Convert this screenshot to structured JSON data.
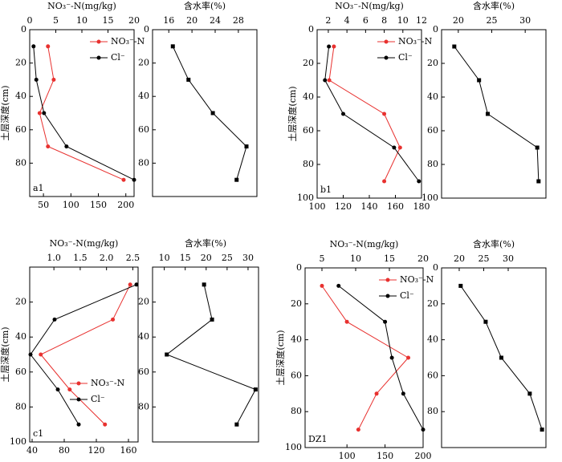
{
  "chart_data": [
    {
      "type": "line",
      "label": "a1",
      "ylabel": "土层深度(cm)",
      "x2label": "NO₃⁻-N(mg/kg)",
      "legend": "upper right",
      "y": [
        10,
        30,
        50,
        70,
        90
      ],
      "ylim": [
        0,
        100
      ],
      "yticks": [
        0,
        20,
        40,
        60,
        80
      ],
      "x2lim": [
        0,
        20
      ],
      "x2ticks": [
        0,
        5,
        10,
        15,
        20
      ],
      "xlim": [
        25,
        215
      ],
      "xticks": [
        50,
        100,
        150,
        200
      ],
      "series": [
        {
          "name": "NO₃⁻-N",
          "color": "#e8312f",
          "axis": "x2",
          "marker": "circle",
          "values": [
            3.5,
            4.6,
            1.9,
            3.5,
            18
          ]
        },
        {
          "name": "Cl⁻",
          "color": "#000000",
          "axis": "x",
          "marker": "circle",
          "values": [
            32,
            37,
            51,
            92,
            215
          ]
        }
      ]
    },
    {
      "type": "line",
      "x2label": "含水率(%)",
      "y": [
        10,
        30,
        50,
        70,
        90
      ],
      "ylim": [
        0,
        100
      ],
      "yticks": [
        0,
        20,
        40,
        60,
        80
      ],
      "x2lim": [
        13.2,
        31.2
      ],
      "x2ticks": [
        16,
        20,
        24,
        28
      ],
      "series": [
        {
          "color": "#000000",
          "axis": "x2",
          "marker": "square",
          "values": [
            16.7,
            19.4,
            23.6,
            29.4,
            27.7
          ]
        }
      ]
    },
    {
      "type": "line",
      "label": "b1",
      "ylabel": "土层深度(cm)",
      "x2label": "NO₃⁻-N(mg/kg)",
      "legend": "upper right",
      "y": [
        10,
        30,
        50,
        70,
        90
      ],
      "ylim": [
        0,
        100
      ],
      "yticks": [
        0,
        20,
        40,
        60,
        80,
        100
      ],
      "x2lim": [
        0.8,
        12
      ],
      "x2ticks": [
        2,
        4,
        6,
        8,
        10,
        12
      ],
      "xlim": [
        100,
        180
      ],
      "xticks": [
        100,
        120,
        140,
        160,
        180
      ],
      "series": [
        {
          "name": "NO₃⁻-N",
          "color": "#e8312f",
          "axis": "x2",
          "marker": "circle",
          "values": [
            2.6,
            2.1,
            8.0,
            9.7,
            8.0
          ]
        },
        {
          "name": "Cl⁻",
          "color": "#000000",
          "axis": "x",
          "marker": "circle",
          "values": [
            109,
            106,
            120,
            159,
            178
          ]
        }
      ]
    },
    {
      "type": "line",
      "x2label": "含水率(%)",
      "y": [
        10,
        30,
        50,
        70,
        90
      ],
      "ylim": [
        0,
        100
      ],
      "yticks": [
        0,
        20,
        40,
        60,
        80,
        100
      ],
      "x2lim": [
        17.5,
        33.1
      ],
      "x2ticks": [
        20,
        25,
        30
      ],
      "series": [
        {
          "color": "#000000",
          "axis": "x2",
          "marker": "square",
          "values": [
            19.4,
            23.1,
            24.4,
            31.8,
            32.0
          ]
        }
      ]
    },
    {
      "type": "line",
      "label": "c1",
      "ylabel": "土层深度(cm)",
      "x2label": "NO₃⁻-N(mg/kg)",
      "legend": "lower center",
      "y": [
        10,
        30,
        50,
        70,
        90
      ],
      "ylim": [
        0,
        100
      ],
      "yticks": [
        20,
        40,
        60,
        80,
        100
      ],
      "x2lim": [
        0.54,
        2.6
      ],
      "x2ticks": [
        {
          "value": 1,
          "label": "1.0"
        },
        1.5,
        {
          "value": 2,
          "label": "2.0"
        },
        2.5
      ],
      "xlim": [
        37,
        172
      ],
      "xticks": [
        40,
        80,
        120,
        160
      ],
      "series": [
        {
          "name": "NO₃⁻-N",
          "color": "#e8312f",
          "axis": "x2",
          "marker": "circle",
          "values": [
            2.45,
            2.12,
            0.75,
            1.3,
            1.97
          ]
        },
        {
          "name": "Cl⁻",
          "color": "#000000",
          "axis": "x",
          "marker": "circle",
          "values": [
            170,
            68,
            38,
            72,
            98
          ]
        }
      ]
    },
    {
      "type": "line",
      "x2label": "含水率(%)",
      "y": [
        10,
        30,
        50,
        70,
        90
      ],
      "ylim": [
        0,
        100
      ],
      "yticks": [
        20,
        40,
        60,
        80
      ],
      "x2lim": [
        7.2,
        32.5
      ],
      "x2ticks": [
        10,
        15,
        20,
        25,
        30
      ],
      "series": [
        {
          "color": "#000000",
          "axis": "x2",
          "marker": "square",
          "values": [
            19.5,
            21.4,
            10.6,
            31.8,
            27.3
          ]
        }
      ]
    },
    {
      "type": "line",
      "label": "DZ1",
      "ylabel": "土层深度(cm)",
      "x2label": "NO₃⁻-N(mg/kg)",
      "legend": "upper right",
      "y": [
        10,
        30,
        50,
        70,
        90
      ],
      "ylim": [
        0,
        100
      ],
      "yticks": [
        0,
        20,
        40,
        60,
        80,
        100
      ],
      "x2lim": [
        2.5,
        20
      ],
      "x2ticks": [
        5,
        10,
        15,
        20
      ],
      "xlim": [
        45,
        200
      ],
      "xticks": [
        100,
        150,
        200
      ],
      "series": [
        {
          "name": "NO₃⁻-N",
          "color": "#e8312f",
          "axis": "x2",
          "marker": "circle",
          "values": [
            5,
            8.7,
            17.8,
            13.1,
            10.4
          ]
        },
        {
          "name": "Cl⁻",
          "color": "#000000",
          "axis": "x",
          "marker": "circle",
          "values": [
            89,
            150,
            159,
            174,
            200
          ]
        }
      ]
    },
    {
      "type": "line",
      "x2label": "含水率(%)",
      "y": [
        10,
        30,
        50,
        70,
        90
      ],
      "ylim": [
        0,
        100
      ],
      "yticks": [
        0,
        20,
        40,
        60,
        80
      ],
      "x2lim": [
        16.4,
        37.7
      ],
      "x2ticks": [
        20,
        25,
        30
      ],
      "series": [
        {
          "color": "#000000",
          "axis": "x2",
          "marker": "square",
          "values": [
            20.3,
            25.4,
            28.6,
            34.4,
            36.9
          ]
        }
      ]
    }
  ]
}
